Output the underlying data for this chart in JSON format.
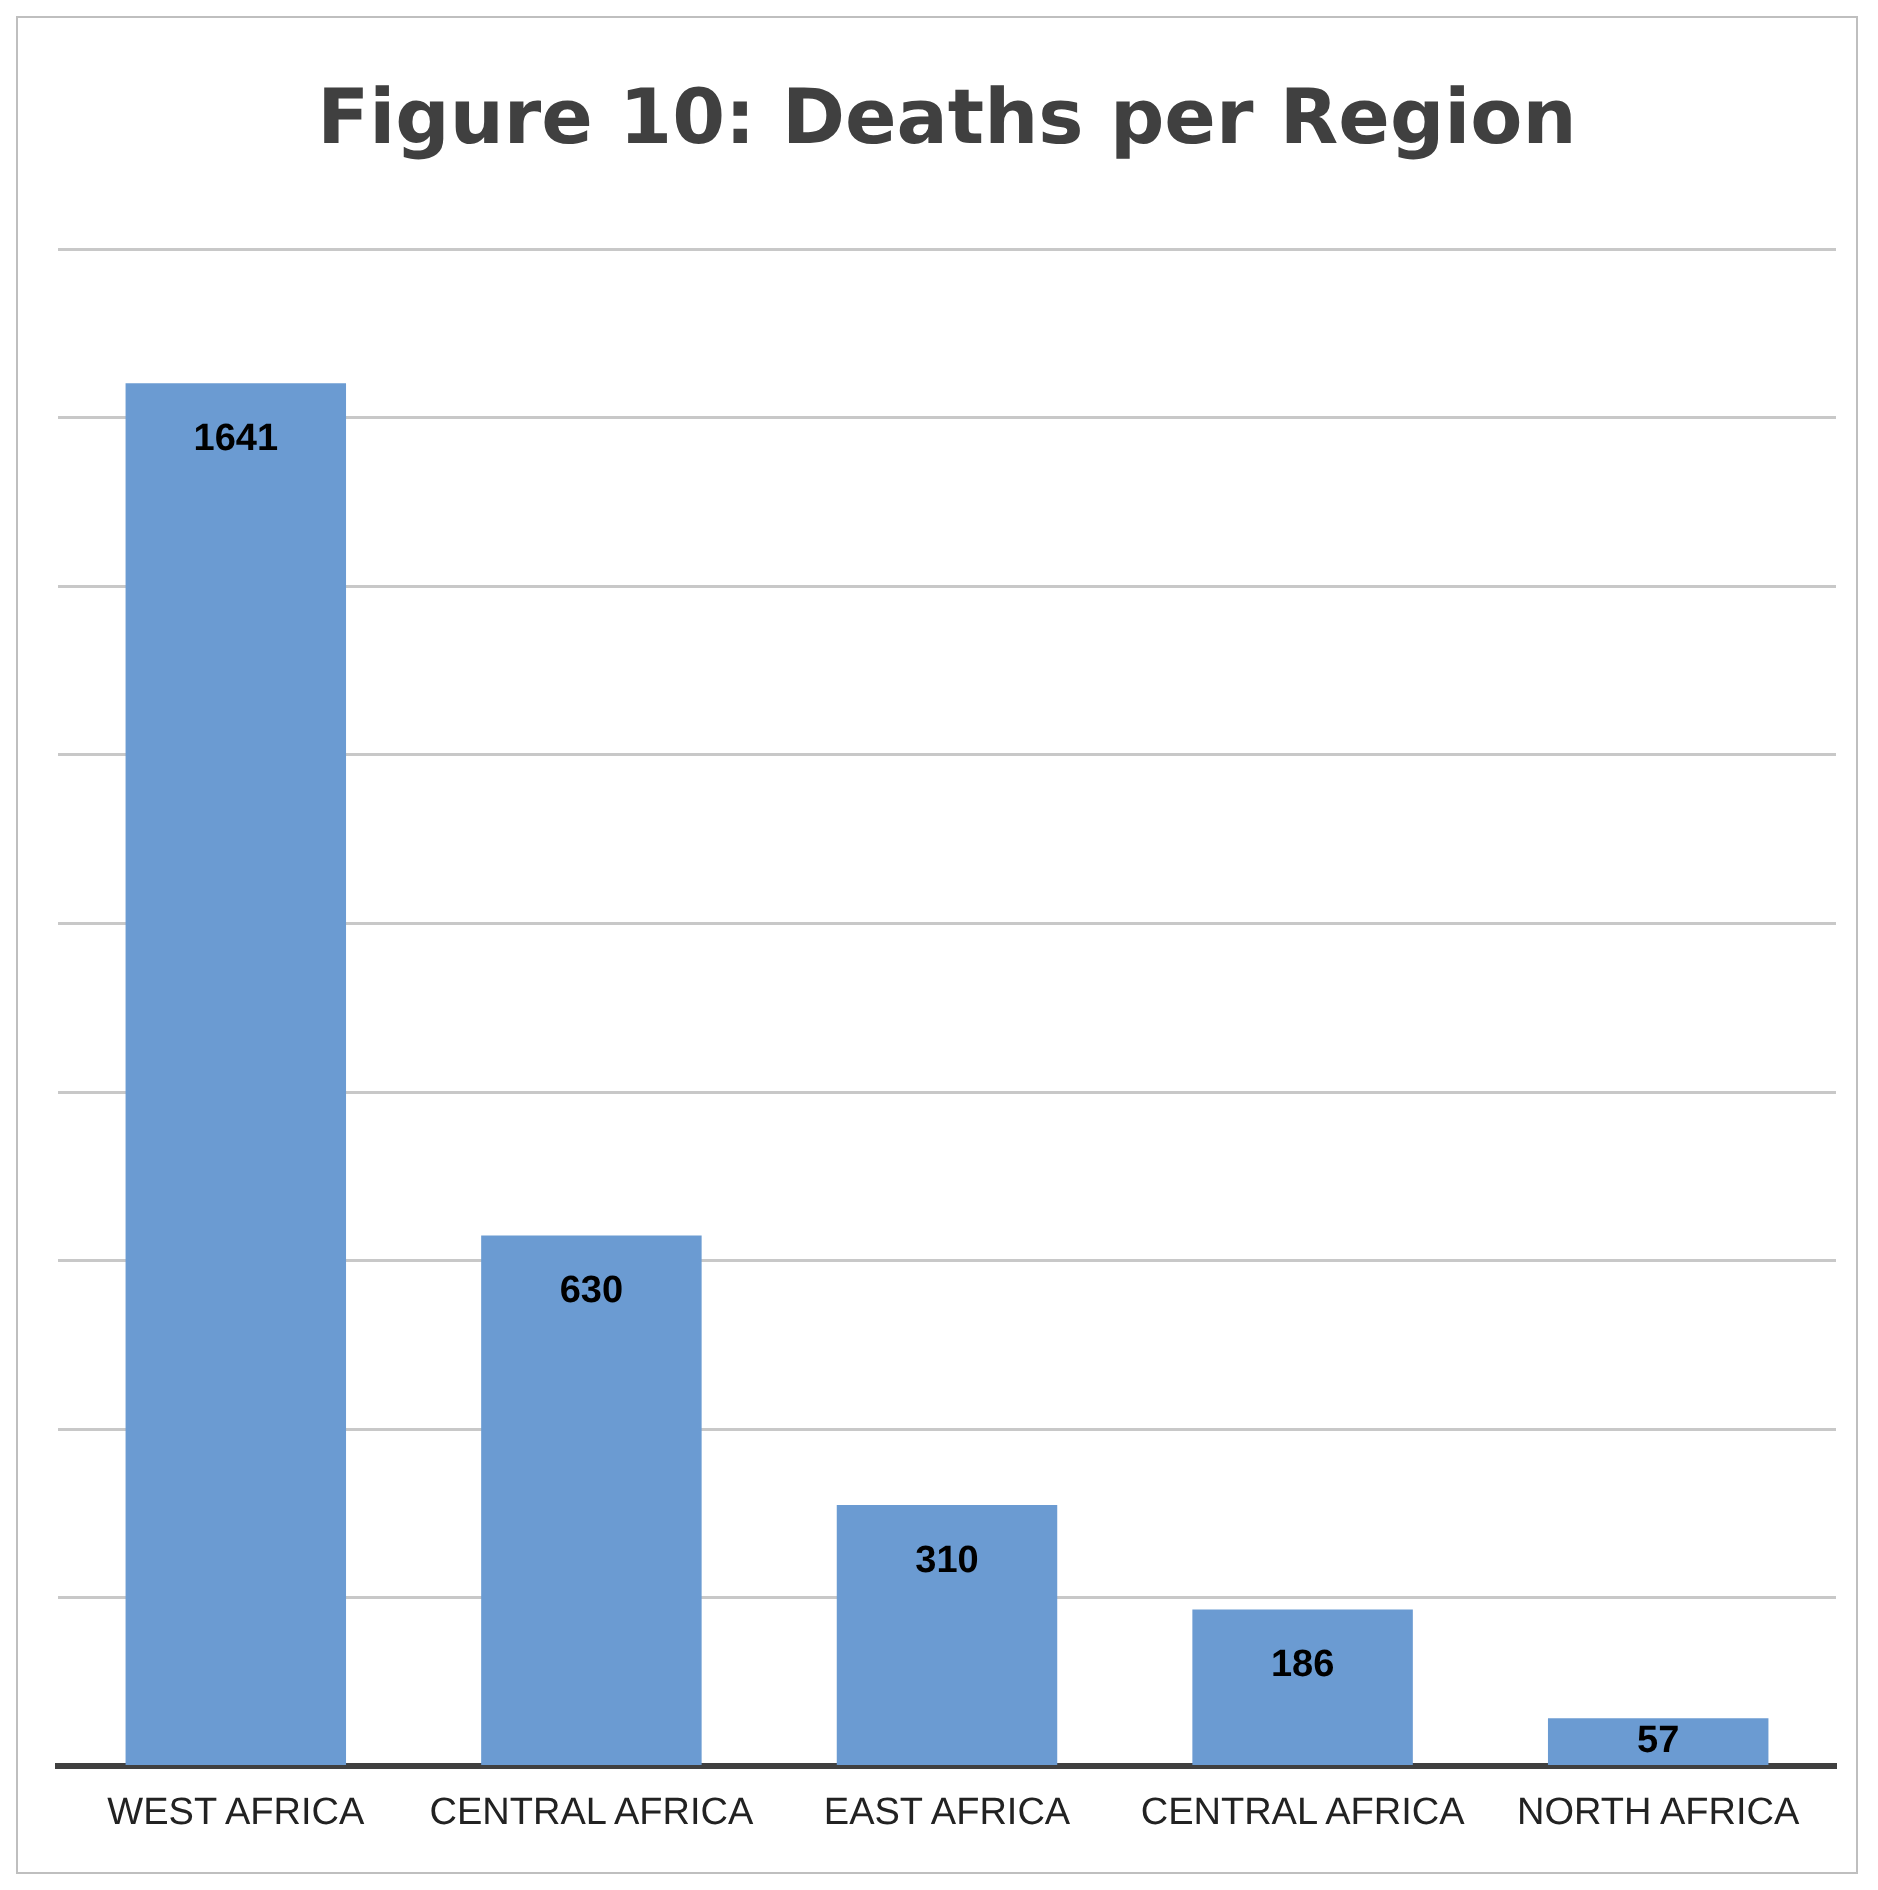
{
  "chart_data": {
    "type": "bar",
    "title": "Figure 10: Deaths per Region",
    "categories": [
      "WEST AFRICA",
      "CENTRAL AFRICA",
      "EAST AFRICA",
      "CENTRAL AFRICA",
      "NORTH AFRICA"
    ],
    "values": [
      1641,
      630,
      310,
      186,
      57
    ],
    "color": "#6b9bd2",
    "tick_labels": "x",
    "grid": "y",
    "data_labels": true,
    "legend": false
  }
}
